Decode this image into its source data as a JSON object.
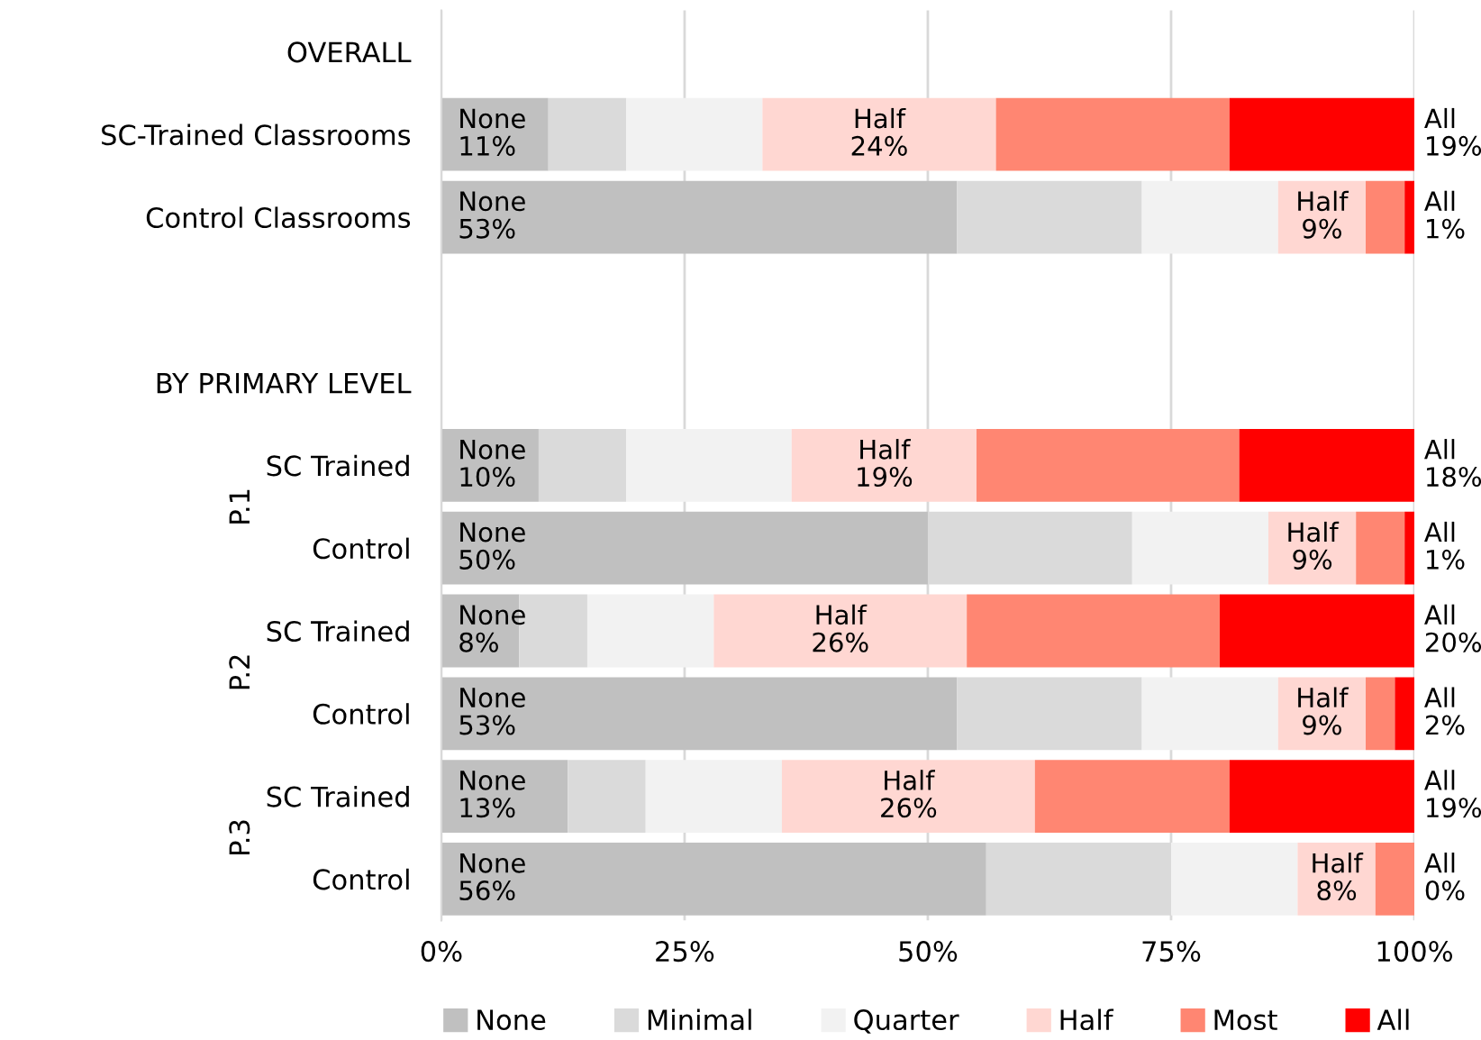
{
  "chart_data": {
    "type": "bar",
    "orientation": "horizontal",
    "stacked": true,
    "categories": [
      "OVERALL",
      "SC-Trained Classrooms",
      "Control Classrooms",
      null,
      "BY PRIMARY LEVEL",
      "SC Trained",
      "Control",
      "SC Trained",
      "Control",
      "SC Trained",
      "Control"
    ],
    "series": [
      {
        "name": "None",
        "color": "#c0c0c0",
        "values": [
          null,
          11,
          53,
          null,
          null,
          10,
          50,
          8,
          53,
          13,
          56
        ],
        "value_labels": [
          null,
          "None\n11%",
          "None\n53%",
          null,
          null,
          "None\n10%",
          "None\n50%",
          "None\n8%",
          "None\n53%",
          "None\n13%",
          "None\n56%"
        ]
      },
      {
        "name": "Minimal",
        "color": "#dadada",
        "values": [
          null,
          8,
          19,
          null,
          null,
          9,
          21,
          7,
          19,
          8,
          19
        ]
      },
      {
        "name": "Quarter",
        "color": "#f2f2f2",
        "values": [
          null,
          14,
          14,
          null,
          null,
          17,
          14,
          13,
          14,
          14,
          13
        ]
      },
      {
        "name": "Half",
        "color": "#ffd7d2",
        "values": [
          null,
          24,
          9,
          null,
          null,
          19,
          9,
          26,
          9,
          26,
          8
        ],
        "value_labels": [
          null,
          "Half\n24%",
          "Half\n9%",
          null,
          null,
          "Half\n19%",
          "Half\n9%",
          "Half\n26%",
          "Half\n9%",
          "Half\n26%",
          "Half\n8%"
        ]
      },
      {
        "name": "Most",
        "color": "#ff8672",
        "values": [
          null,
          24,
          4,
          null,
          null,
          27,
          5,
          26,
          3,
          20,
          4
        ]
      },
      {
        "name": "All",
        "color": "#ff0000",
        "values": [
          null,
          19,
          1,
          null,
          null,
          18,
          1,
          20,
          2,
          19,
          0
        ],
        "value_labels": [
          null,
          "All\n19%",
          "All\n1%",
          null,
          null,
          "All\n18%",
          "All\n1%",
          "All\n20%",
          "All\n2%",
          "All\n19%",
          "All\n0%"
        ]
      }
    ],
    "xlim": [
      0,
      100
    ],
    "xticks": [
      {
        "value": 0,
        "label": "0%"
      },
      {
        "value": 25,
        "label": "25%"
      },
      {
        "value": 50,
        "label": "50%"
      },
      {
        "value": 75,
        "label": "75%"
      },
      {
        "value": 100,
        "label": "100%"
      }
    ],
    "grid": "x",
    "legend": "bottom",
    "annotations": [
      "P.1",
      "P.2",
      "P.3"
    ]
  }
}
